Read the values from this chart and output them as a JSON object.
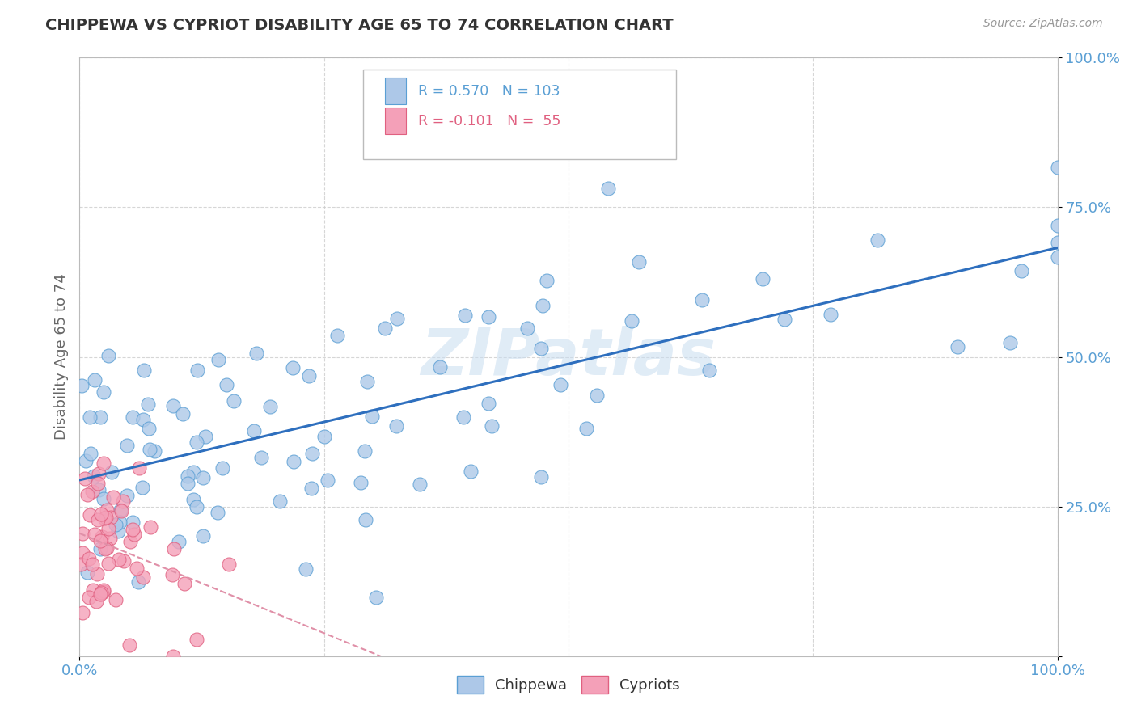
{
  "title": "CHIPPEWA VS CYPRIOT DISABILITY AGE 65 TO 74 CORRELATION CHART",
  "source_text": "Source: ZipAtlas.com",
  "ylabel": "Disability Age 65 to 74",
  "xlim": [
    0,
    1.0
  ],
  "ylim": [
    0,
    1.0
  ],
  "chippewa_R": "0.570",
  "chippewa_N": "103",
  "cypriot_R": "-0.101",
  "cypriot_N": "55",
  "chippewa_color": "#adc8e8",
  "cypriot_color": "#f4a0b8",
  "chippewa_edge_color": "#5a9fd4",
  "cypriot_edge_color": "#e06080",
  "chippewa_line_color": "#2e6fbe",
  "cypriot_line_color": "#e090a8",
  "tick_color": "#5a9fd4",
  "watermark": "ZIPatlas",
  "background_color": "#ffffff",
  "grid_color": "#cccccc",
  "title_color": "#333333",
  "axis_label_color": "#666666"
}
